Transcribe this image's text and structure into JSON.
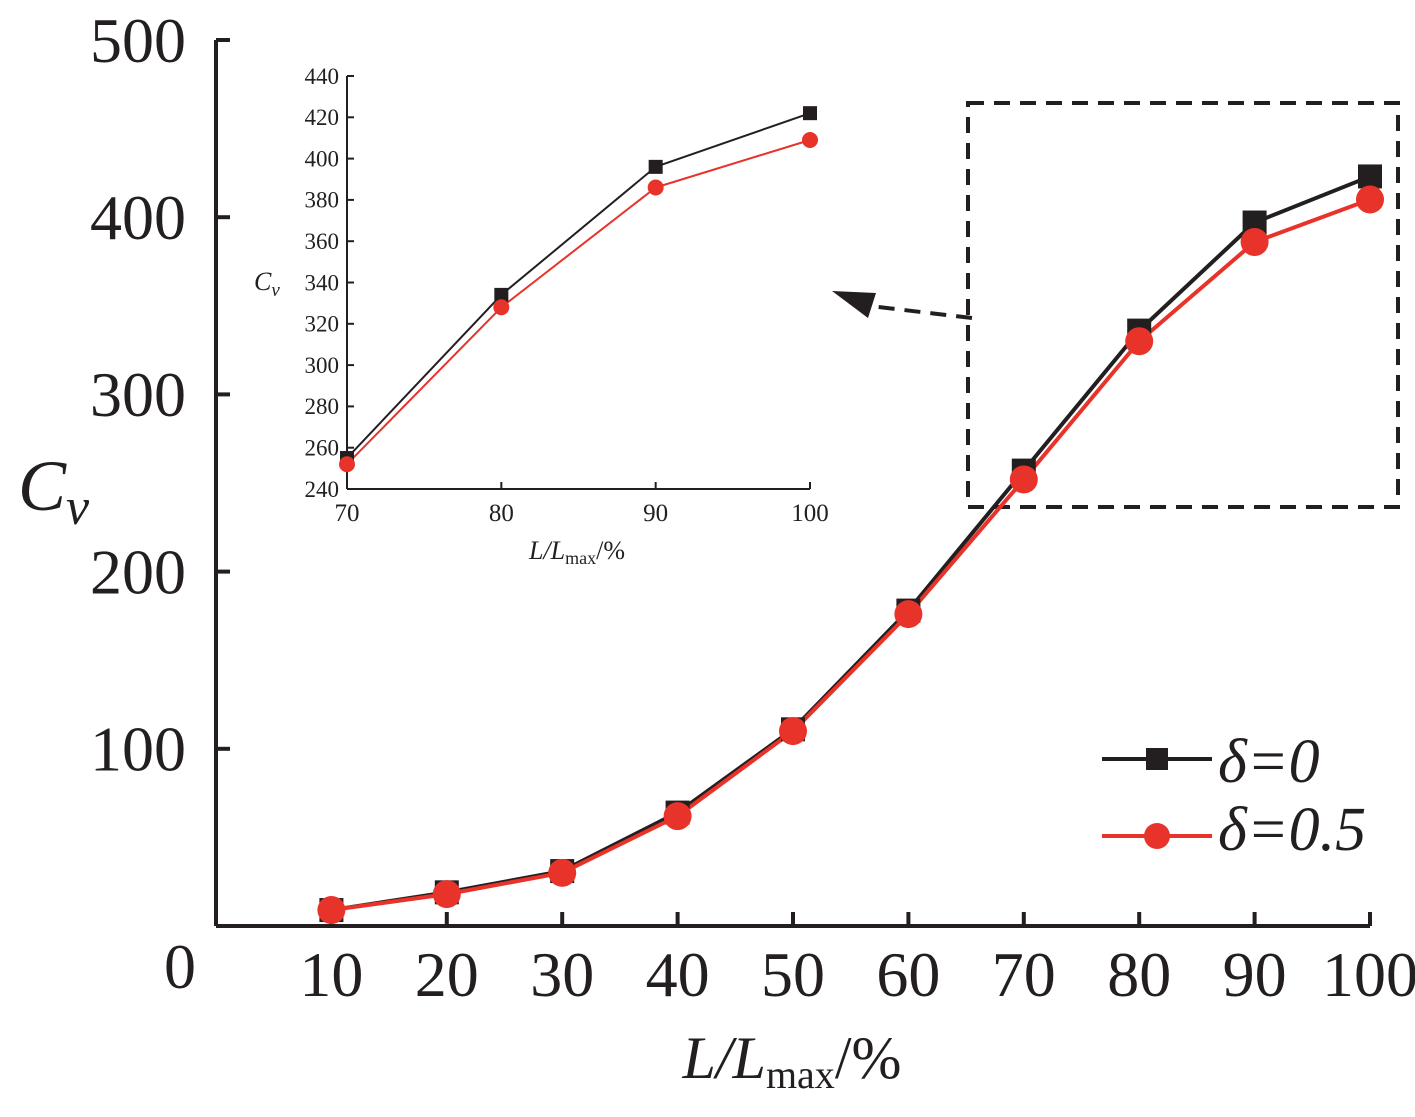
{
  "chart_data": [
    {
      "type": "line",
      "x": [
        10,
        20,
        30,
        40,
        50,
        60,
        70,
        80,
        90,
        100
      ],
      "xticks": [
        "10",
        "20",
        "30",
        "40",
        "50",
        "60",
        "70",
        "80",
        "90",
        "100"
      ],
      "yticks": [
        "0",
        "100",
        "200",
        "300",
        "400",
        "500"
      ],
      "xlim": [
        0,
        100
      ],
      "ylim": [
        0,
        500
      ],
      "xlabel": {
        "main": "L/L",
        "sub": "max",
        "tail": "/%"
      },
      "ylabel": {
        "main": "C",
        "sub": "v"
      },
      "series": [
        {
          "name": "δ=0",
          "color": "#231f20",
          "marker": "square",
          "values": [
            9,
            19,
            31,
            64,
            111,
            178,
            257,
            336,
            397,
            423
          ]
        },
        {
          "name": "δ=0.5",
          "color": "#e8332a",
          "marker": "circle",
          "values": [
            9,
            18,
            30,
            62,
            110,
            176,
            252,
            330,
            386,
            410
          ]
        }
      ],
      "legend": "bottom-right",
      "grid": false,
      "annotations": [
        "dashed box around x 70–100 with dashed arrow pointing to the inset"
      ]
    },
    {
      "type": "line",
      "role": "inset",
      "x": [
        70,
        80,
        90,
        100
      ],
      "xticks": [
        "70",
        "80",
        "90",
        "100"
      ],
      "yticks": [
        "240",
        "260",
        "280",
        "300",
        "320",
        "340",
        "360",
        "380",
        "400",
        "420",
        "440"
      ],
      "xlim": [
        70,
        100
      ],
      "ylim": [
        240,
        440
      ],
      "xlabel": {
        "main": "L/L",
        "sub": "max",
        "tail": "/%"
      },
      "ylabel": {
        "main": "C",
        "sub": "v"
      },
      "series": [
        {
          "name": "δ=0",
          "color": "#231f20",
          "marker": "square",
          "values": [
            255,
            334,
            396,
            422
          ]
        },
        {
          "name": "δ=0.5",
          "color": "#e8332a",
          "marker": "circle",
          "values": [
            252,
            328,
            386,
            409
          ]
        }
      ],
      "grid": false
    }
  ]
}
